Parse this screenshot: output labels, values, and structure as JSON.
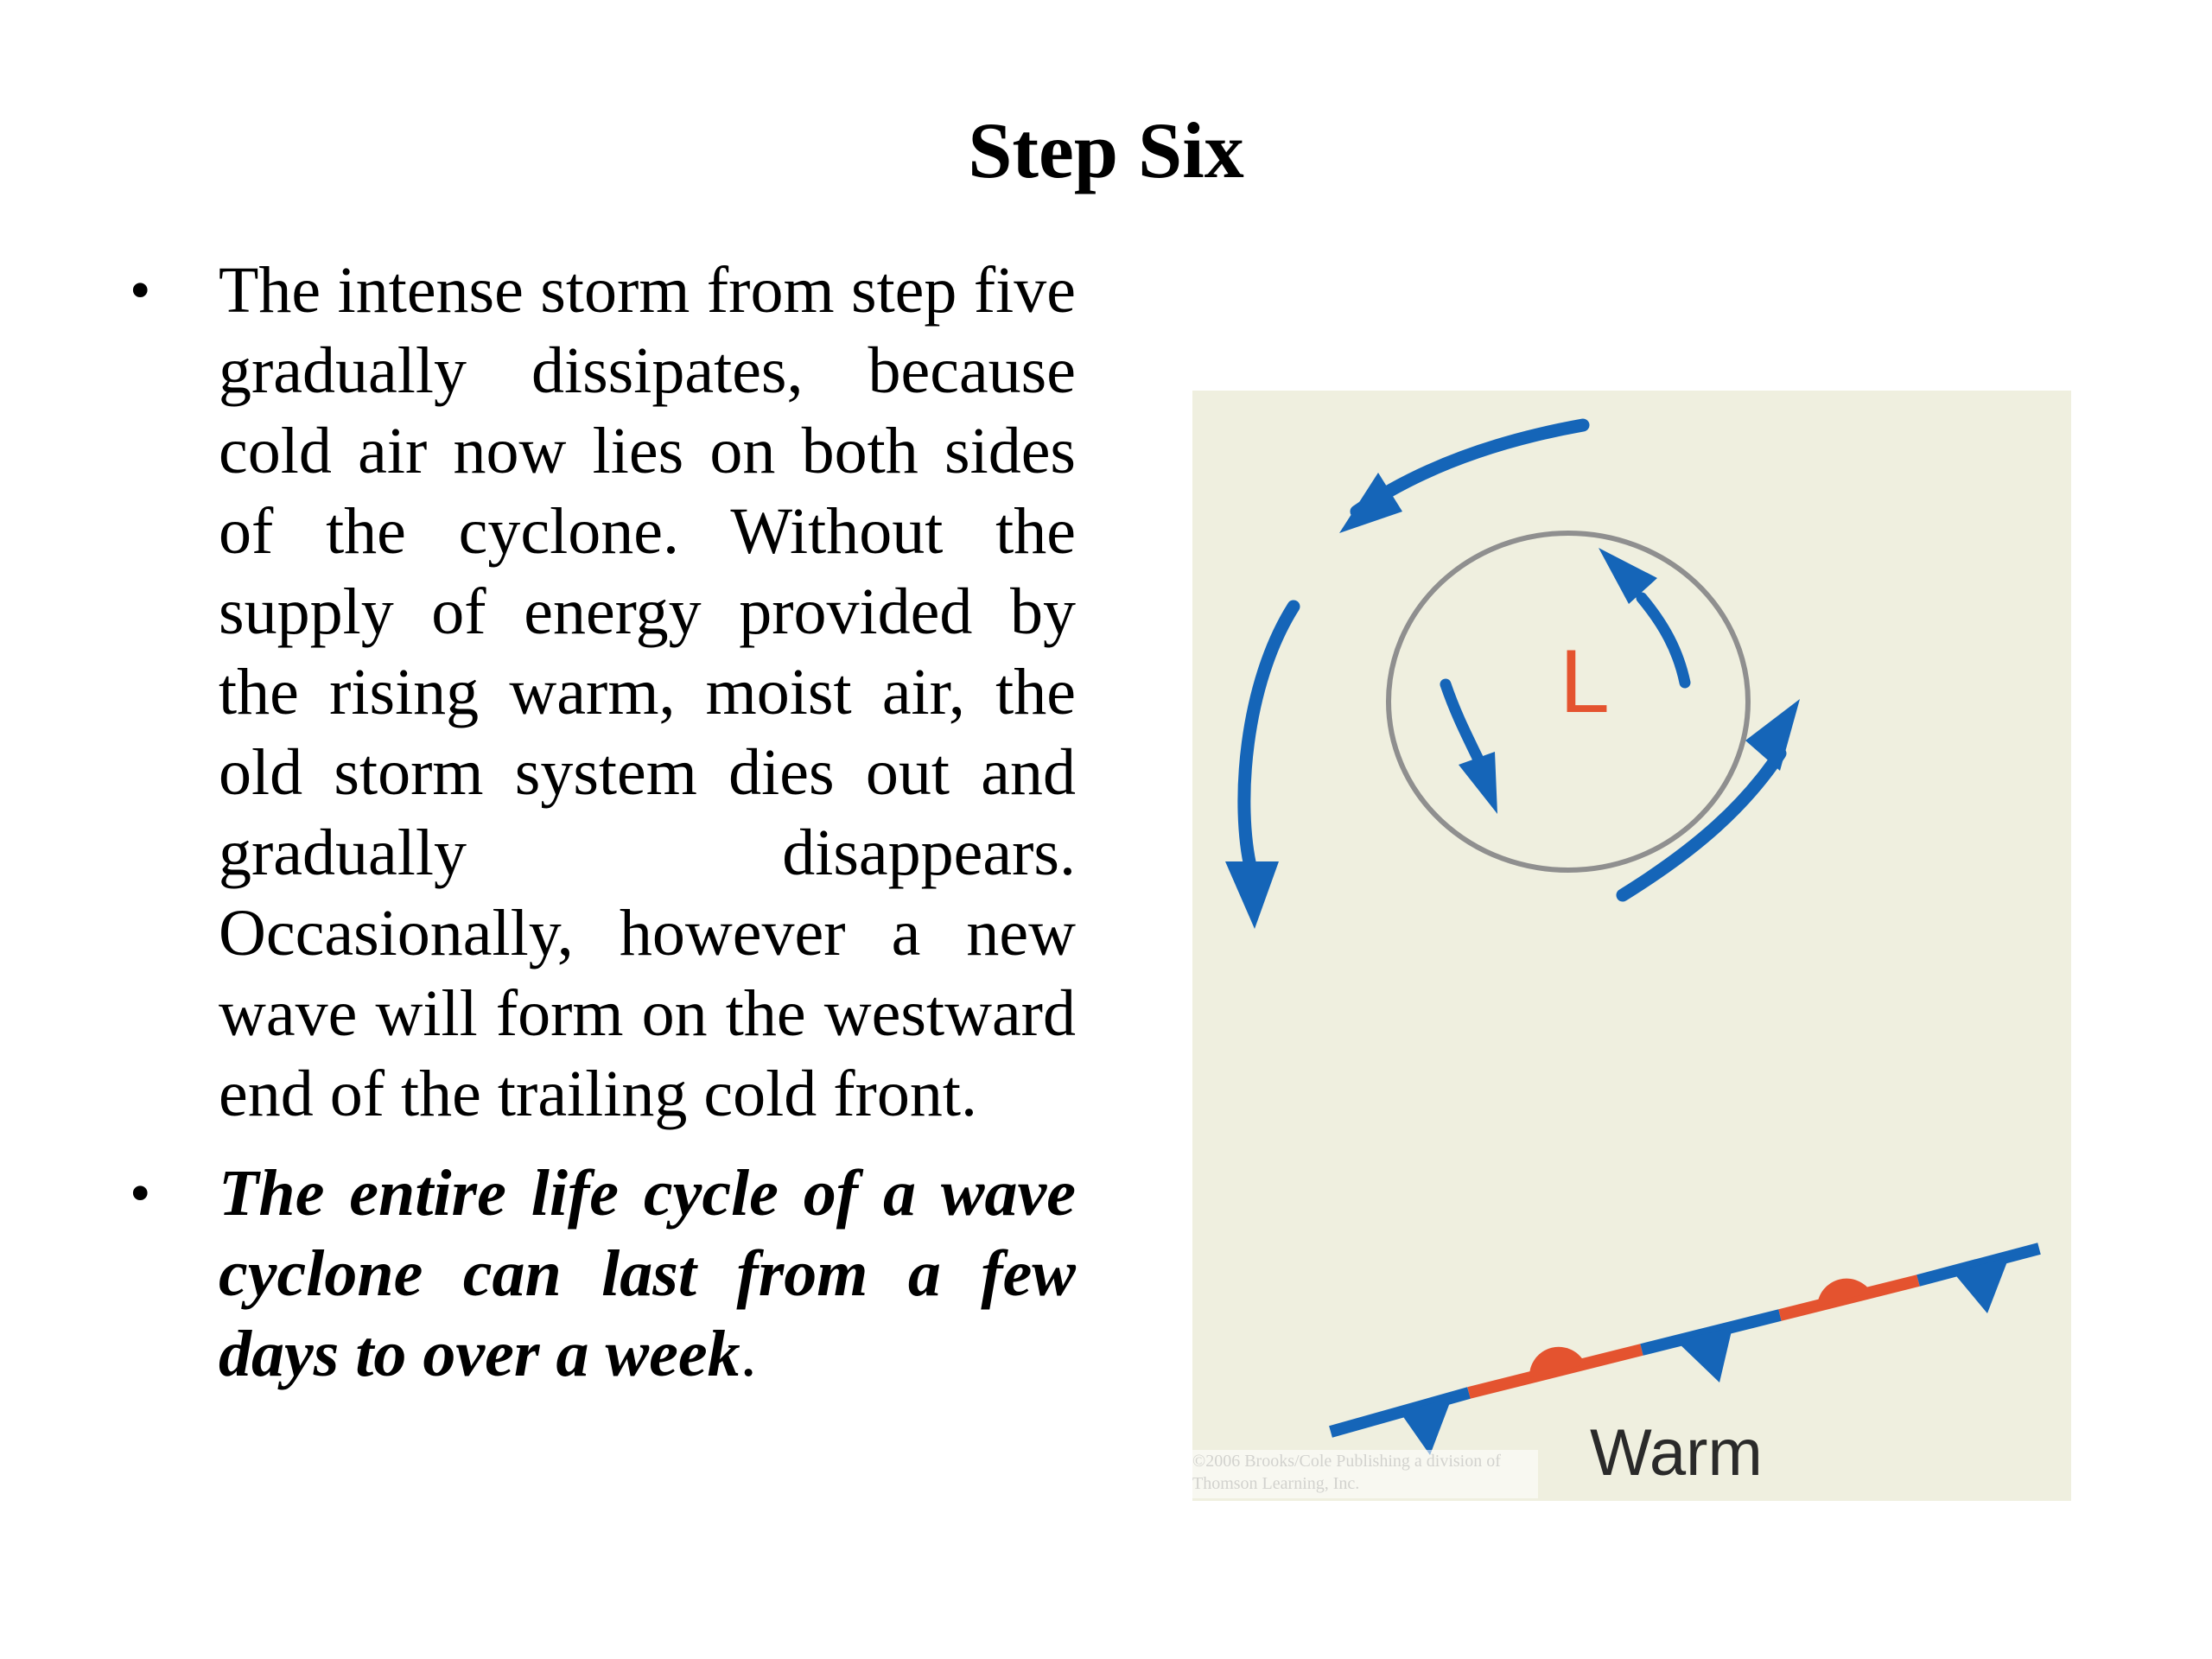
{
  "slide": {
    "title": "Step Six"
  },
  "bullets": [
    {
      "marker": "•",
      "text": "The intense storm from step five gradually dissipates, because cold air now lies on both sides of the cyclone. Without the supply of energy provided by the rising warm, moist air, the old storm system dies out and gradually disappears. Occasionally, however a new wave will form on the westward end of the trailing cold front."
    },
    {
      "marker": "•",
      "text_emphasis": "The entire life cycle of a wave cyclone can last from a few days to over a week",
      "text_trailing": "."
    }
  ],
  "diagram": {
    "low_label": "L",
    "warm_label": "Warm",
    "copyright": "©2006 Brooks/Cole Publishing a division of Thomson Learning, Inc.",
    "colors": {
      "background": "#efefdf",
      "arrow": "#1565b8",
      "warm_front": "#e4532f",
      "cold_front": "#1565b8",
      "circle": "#8f8f8f",
      "low_label": "#e4532f"
    }
  }
}
